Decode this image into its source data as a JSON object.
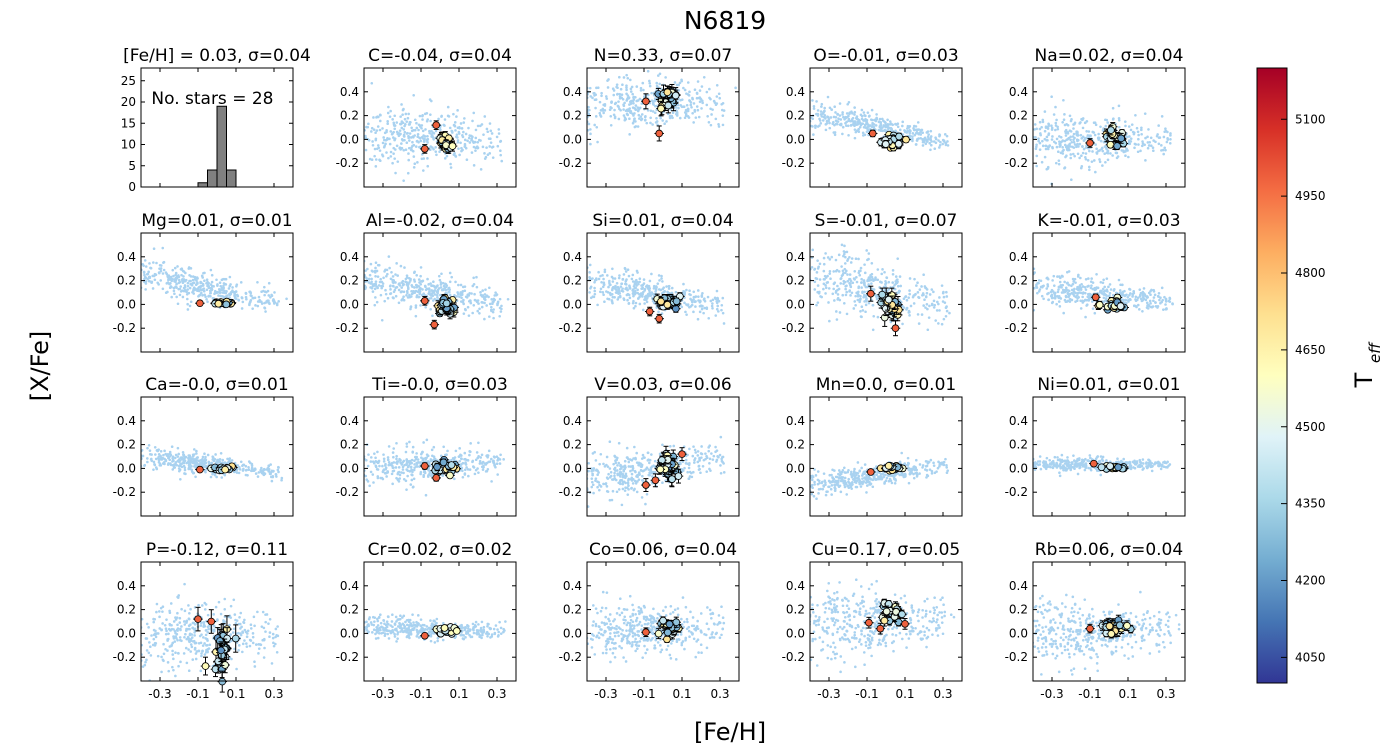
{
  "figure": {
    "title": "N6819",
    "xlabel": "[Fe/H]",
    "ylabel": "[X/Fe]",
    "colorbar": {
      "label_main": "T",
      "label_sub": "eff",
      "range": [
        4000,
        5200
      ],
      "ticks": [
        "4050",
        "4200",
        "4350",
        "4500",
        "4650",
        "4800",
        "4950",
        "5100"
      ],
      "colormap": "RdYlBu_r"
    },
    "field_color": "#a9d2f0"
  },
  "chart_data": [
    {
      "type": "bar",
      "panel": "histogram",
      "title": "[Fe/H] = 0.03, σ=0.04",
      "annotation": "No. stars = 28",
      "xlim": [
        -0.4,
        0.4
      ],
      "ylim": [
        0,
        28
      ],
      "yticks": [
        "0",
        "5",
        "10",
        "15",
        "20",
        "25"
      ],
      "bins": [
        [
          -0.1,
          -0.05,
          1
        ],
        [
          -0.05,
          0.0,
          4
        ],
        [
          0.0,
          0.05,
          19
        ],
        [
          0.05,
          0.1,
          4
        ]
      ],
      "bar_color": "#808080"
    },
    {
      "type": "scatter",
      "element": "C",
      "title": "C=-0.04, σ=0.04",
      "mean": -0.04,
      "sigma": 0.04,
      "field_trend": [
        0.06,
        0.02,
        -0.04
      ],
      "field_spread": 0.13,
      "outliers": [
        [
          -0.08,
          -0.08
        ],
        [
          -0.02,
          0.12
        ]
      ]
    },
    {
      "type": "scatter",
      "element": "N",
      "title": "N=0.33, σ=0.07",
      "mean": 0.33,
      "sigma": 0.07,
      "field_trend": [
        0.3,
        0.3,
        0.28
      ],
      "field_spread": 0.13,
      "outliers": [
        [
          -0.09,
          0.32
        ],
        [
          -0.02,
          0.05
        ]
      ]
    },
    {
      "type": "scatter",
      "element": "O",
      "title": "O=-0.01, σ=0.03",
      "mean": -0.01,
      "sigma": 0.03,
      "field_trend": [
        0.22,
        0.1,
        -0.05
      ],
      "field_spread": 0.06,
      "outliers": [
        [
          -0.07,
          0.05
        ]
      ]
    },
    {
      "type": "scatter",
      "element": "Na",
      "title": "Na=0.02, σ=0.04",
      "mean": 0.02,
      "sigma": 0.04,
      "field_trend": [
        0.0,
        0.0,
        0.0
      ],
      "field_spread": 0.12,
      "outliers": [
        [
          -0.1,
          -0.03
        ]
      ]
    },
    {
      "type": "scatter",
      "element": "Mg",
      "title": "Mg=0.01, σ=0.01",
      "mean": 0.01,
      "sigma": 0.01,
      "field_trend": [
        0.25,
        0.12,
        -0.02
      ],
      "field_spread": 0.07,
      "outliers": [
        [
          -0.09,
          0.01
        ]
      ]
    },
    {
      "type": "scatter",
      "element": "Al",
      "title": "Al=-0.02, σ=0.04",
      "mean": -0.02,
      "sigma": 0.04,
      "field_trend": [
        0.2,
        0.1,
        -0.02
      ],
      "field_spread": 0.09,
      "outliers": [
        [
          -0.08,
          0.03
        ],
        [
          -0.03,
          -0.17
        ]
      ]
    },
    {
      "type": "scatter",
      "element": "Si",
      "title": "Si=0.01, σ=0.04",
      "mean": 0.01,
      "sigma": 0.04,
      "field_trend": [
        0.2,
        0.08,
        -0.02
      ],
      "field_spread": 0.07,
      "outliers": [
        [
          -0.07,
          -0.06
        ],
        [
          -0.02,
          -0.12
        ]
      ]
    },
    {
      "type": "scatter",
      "element": "S",
      "title": "S=-0.01, σ=0.07",
      "mean": -0.01,
      "sigma": 0.07,
      "field_trend": [
        0.25,
        0.1,
        -0.05
      ],
      "field_spread": 0.13,
      "outliers": [
        [
          -0.08,
          0.09
        ],
        [
          0.05,
          -0.2
        ]
      ]
    },
    {
      "type": "scatter",
      "element": "K",
      "title": "K=-0.01, σ=0.03",
      "mean": -0.01,
      "sigma": 0.03,
      "field_trend": [
        0.15,
        0.08,
        0.0
      ],
      "field_spread": 0.07,
      "outliers": [
        [
          -0.07,
          0.06
        ]
      ]
    },
    {
      "type": "scatter",
      "element": "Ca",
      "title": "Ca=-0.0, σ=0.01",
      "mean": 0.0,
      "sigma": 0.01,
      "field_trend": [
        0.1,
        0.03,
        -0.05
      ],
      "field_spread": 0.05,
      "outliers": [
        [
          -0.09,
          -0.01
        ]
      ]
    },
    {
      "type": "scatter",
      "element": "Ti",
      "title": "Ti=-0.0, σ=0.03",
      "mean": 0.0,
      "sigma": 0.03,
      "field_trend": [
        0.02,
        0.03,
        0.06
      ],
      "field_spread": 0.08,
      "outliers": [
        [
          -0.08,
          0.02
        ],
        [
          -0.02,
          -0.08
        ]
      ]
    },
    {
      "type": "scatter",
      "element": "V",
      "title": "V=0.03, σ=0.06",
      "mean": 0.03,
      "sigma": 0.06,
      "field_trend": [
        -0.08,
        0.02,
        0.1
      ],
      "field_spread": 0.1,
      "outliers": [
        [
          -0.09,
          -0.14
        ],
        [
          -0.04,
          -0.1
        ],
        [
          0.1,
          0.12
        ]
      ]
    },
    {
      "type": "scatter",
      "element": "Mn",
      "title": "Mn=0.0, σ=0.01",
      "mean": 0.0,
      "sigma": 0.01,
      "field_trend": [
        -0.14,
        -0.04,
        0.05
      ],
      "field_spread": 0.05,
      "outliers": [
        [
          -0.08,
          -0.03
        ]
      ]
    },
    {
      "type": "scatter",
      "element": "Ni",
      "title": "Ni=0.01, σ=0.01",
      "mean": 0.01,
      "sigma": 0.01,
      "field_trend": [
        0.04,
        0.03,
        0.03
      ],
      "field_spread": 0.03,
      "outliers": [
        [
          -0.08,
          0.04
        ]
      ]
    },
    {
      "type": "scatter",
      "element": "P",
      "title": "P=-0.12, σ=0.11",
      "mean": -0.12,
      "sigma": 0.11,
      "field_trend": [
        0.0,
        0.0,
        0.0
      ],
      "field_spread": 0.15,
      "outliers": [
        [
          -0.1,
          0.12
        ],
        [
          -0.03,
          0.1
        ]
      ]
    },
    {
      "type": "scatter",
      "element": "Cr",
      "title": "Cr=0.02, σ=0.02",
      "mean": 0.02,
      "sigma": 0.02,
      "field_trend": [
        0.05,
        0.03,
        0.02
      ],
      "field_spread": 0.05,
      "outliers": [
        [
          -0.08,
          -0.02
        ]
      ]
    },
    {
      "type": "scatter",
      "element": "Co",
      "title": "Co=0.06, σ=0.04",
      "mean": 0.06,
      "sigma": 0.04,
      "field_trend": [
        0.02,
        0.03,
        0.05
      ],
      "field_spread": 0.11,
      "outliers": [
        [
          -0.09,
          0.01
        ]
      ]
    },
    {
      "type": "scatter",
      "element": "Cu",
      "title": "Cu=0.17, σ=0.05",
      "mean": 0.17,
      "sigma": 0.05,
      "field_trend": [
        0.08,
        0.1,
        0.12
      ],
      "field_spread": 0.14,
      "outliers": [
        [
          -0.09,
          0.09
        ],
        [
          -0.03,
          0.04
        ],
        [
          0.1,
          0.08
        ]
      ]
    },
    {
      "type": "scatter",
      "element": "Rb",
      "title": "Rb=0.06, σ=0.04",
      "mean": 0.06,
      "sigma": 0.04,
      "field_trend": [
        0.0,
        0.01,
        0.02
      ],
      "field_spread": 0.13,
      "outliers": [
        [
          -0.1,
          0.04
        ]
      ]
    }
  ],
  "axes": {
    "xlim": [
      -0.4,
      0.4
    ],
    "ylim": [
      -0.4,
      0.6
    ],
    "xticks": [
      "-0.3",
      "-0.1",
      "0.1",
      "0.3"
    ],
    "yticks": [
      "-0.2",
      "0.0",
      "0.2",
      "0.4"
    ]
  }
}
